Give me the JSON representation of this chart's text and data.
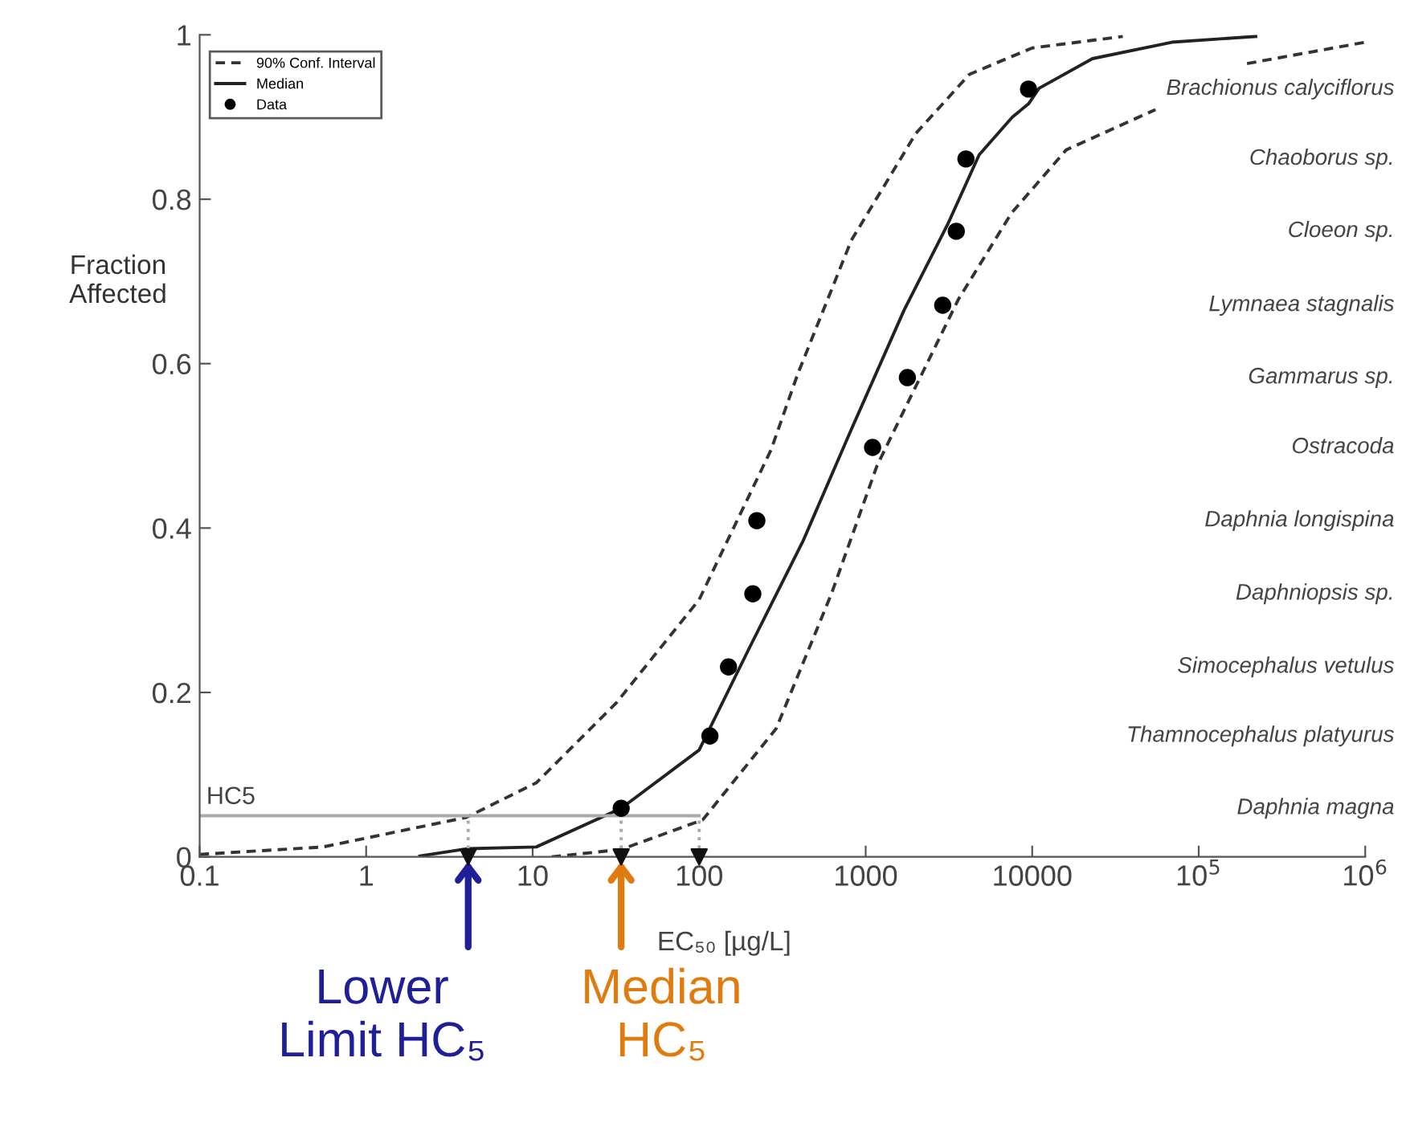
{
  "chart_data": {
    "type": "line",
    "xlabel": "EC₅₀ [µg/L]",
    "ylabel": "Fraction\nAffected",
    "log": "x",
    "xlim": [
      0.1,
      1000000
    ],
    "ylim": [
      0,
      1
    ],
    "xticks": [
      0.1,
      1,
      10,
      100,
      1000,
      10000,
      {
        "value": 100000,
        "label": "10$^{5}$"
      },
      {
        "value": 1000000,
        "label": "10$^{6}$"
      }
    ],
    "yticks": [
      0,
      0.2,
      0.4,
      0.6,
      0.8,
      1
    ],
    "grid": false,
    "legend": "top left",
    "series": [
      {
        "name": "90% Conf. Interval",
        "line_style": "dashed",
        "marker": "none",
        "color": "#333333",
        "x": [
          0.1,
          0.55,
          4.0,
          10.5,
          32,
          100,
          270,
          390,
          820,
          2000,
          4200,
          10000,
          35000
        ],
        "values": [
          0.003,
          0.012,
          0.048,
          0.09,
          0.188,
          0.313,
          0.495,
          0.587,
          0.75,
          0.88,
          0.952,
          0.984,
          0.998
        ]
      },
      {
        "name": "Median",
        "line_style": "solid",
        "marker": "none",
        "color": "#222222",
        "x": [
          2.1,
          4.1,
          10.5,
          34,
          100,
          200,
          420,
          820,
          1700,
          3100,
          4800,
          7600,
          9500,
          11000,
          23000,
          69000,
          220000
        ],
        "values": [
          0.001,
          0.01,
          0.012,
          0.059,
          0.13,
          0.254,
          0.384,
          0.52,
          0.665,
          0.769,
          0.854,
          0.9,
          0.916,
          0.935,
          0.971,
          0.991,
          0.998
        ]
      },
      {
        "line_style": "dashed",
        "marker": "none",
        "color": "#333333",
        "x": [
          13,
          34,
          105,
          290,
          620,
          1170,
          3600,
          7500,
          16000,
          55000,
          100000,
          195000,
          1000000
        ],
        "values": [
          0,
          0.009,
          0.045,
          0.156,
          0.319,
          0.476,
          0.678,
          0.783,
          0.86,
          0.909,
          null,
          0.965,
          0.991
        ]
      },
      {
        "name": "Data",
        "type": "scatter",
        "marker": "circle",
        "color": "#000000",
        "x": [
          34,
          116,
          150,
          210,
          222,
          1100,
          1780,
          2900,
          3500,
          4000,
          9500
        ],
        "values": [
          0.059,
          0.147,
          0.231,
          0.32,
          0.409,
          0.498,
          0.583,
          0.671,
          0.761,
          0.849,
          0.934
        ]
      },
      {
        "line_style": "solid",
        "marker": "none",
        "color": "#aaaaaa",
        "x": [
          0.1,
          100
        ],
        "values": [
          0.05,
          0.05
        ]
      },
      {
        "line_style": "dotted",
        "marker": "none",
        "color": "#aaaaaa",
        "x": [
          4.1,
          4.1
        ],
        "values": [
          0,
          0.05
        ]
      },
      {
        "line_style": "dotted",
        "marker": "none",
        "color": "#aaaaaa",
        "x": [
          34,
          34
        ],
        "values": [
          0,
          0.05
        ]
      },
      {
        "line_style": "dotted",
        "marker": "none",
        "color": "#aaaaaa",
        "x": [
          100,
          100
        ],
        "values": [
          0,
          0.05
        ]
      },
      {
        "type": "scatter",
        "marker": "triangle",
        "color": "#111111",
        "x": [
          4.1,
          34,
          100
        ],
        "values": [
          0,
          0,
          0
        ]
      }
    ],
    "annotations": [
      {
        "text": "HC5",
        "x": 0.1,
        "y": 0.05
      },
      "Daphnia magna",
      "Thamnocephalus platyurus",
      "Simocephalus vetulus",
      "Daphniopsis sp.",
      "Daphnia longispina",
      "Ostracoda",
      "Gammarus sp.",
      "Lymnaea stagnalis",
      "Cloeon sp.",
      "Chaoborus sp.",
      "Brachionus calyciflorus",
      {
        "text": "Lower\nLimit HC₅",
        "x": 4.1,
        "y": 0
      },
      {
        "text": "Median\nHC₅",
        "x": 34,
        "y": 0
      }
    ]
  }
}
